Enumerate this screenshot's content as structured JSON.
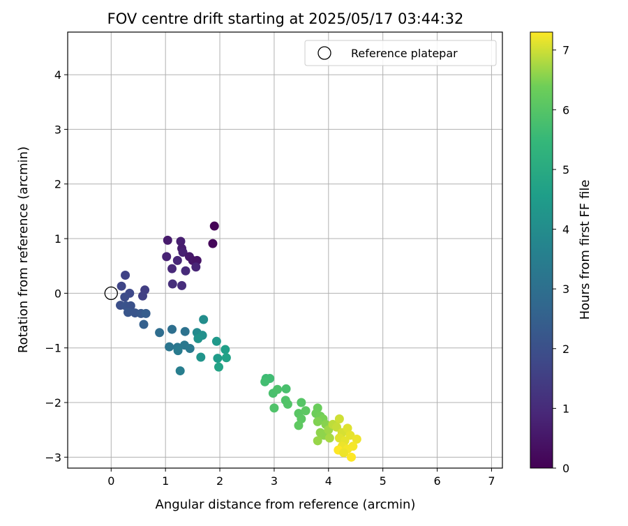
{
  "chart_data": {
    "type": "scatter",
    "title": "FOV centre drift starting at 2025/05/17 03:44:32",
    "xlabel": "Angular distance from reference (arcmin)",
    "ylabel": "Rotation from reference (arcmin)",
    "xlim": [
      -0.8,
      7.2
    ],
    "ylim": [
      -3.2,
      4.78
    ],
    "xticks": [
      0,
      1,
      2,
      3,
      4,
      5,
      6,
      7
    ],
    "yticks": [
      -3,
      -2,
      -1,
      0,
      1,
      2,
      3,
      4
    ],
    "grid": true,
    "legend": {
      "placement": "top-right",
      "entries": [
        "Reference platepar"
      ]
    },
    "reference_point": {
      "x": 0,
      "y": 0
    },
    "colorbar": {
      "label": "Hours from first FF file",
      "range": [
        0,
        7.3
      ],
      "ticks": [
        0,
        1,
        2,
        3,
        4,
        5,
        6,
        7
      ],
      "colormap": "viridis"
    },
    "points": [
      {
        "x": 1.9,
        "y": 1.23,
        "t": 0.05
      },
      {
        "x": 1.87,
        "y": 0.91,
        "t": 0.15
      },
      {
        "x": 1.04,
        "y": 0.97,
        "t": 0.6
      },
      {
        "x": 1.28,
        "y": 0.95,
        "t": 0.7
      },
      {
        "x": 1.3,
        "y": 0.82,
        "t": 0.65
      },
      {
        "x": 1.32,
        "y": 0.75,
        "t": 0.75
      },
      {
        "x": 1.44,
        "y": 0.67,
        "t": 0.55
      },
      {
        "x": 1.5,
        "y": 0.6,
        "t": 0.5
      },
      {
        "x": 1.02,
        "y": 0.67,
        "t": 0.8
      },
      {
        "x": 1.22,
        "y": 0.6,
        "t": 0.9
      },
      {
        "x": 1.58,
        "y": 0.6,
        "t": 0.45
      },
      {
        "x": 1.56,
        "y": 0.48,
        "t": 0.85
      },
      {
        "x": 1.12,
        "y": 0.45,
        "t": 0.95
      },
      {
        "x": 1.37,
        "y": 0.41,
        "t": 1.0
      },
      {
        "x": 1.13,
        "y": 0.17,
        "t": 1.1
      },
      {
        "x": 1.3,
        "y": 0.14,
        "t": 1.05
      },
      {
        "x": 0.26,
        "y": 0.33,
        "t": 1.6
      },
      {
        "x": 0.19,
        "y": 0.13,
        "t": 1.7
      },
      {
        "x": 0.62,
        "y": 0.06,
        "t": 1.5
      },
      {
        "x": 0.34,
        "y": 0.0,
        "t": 1.8
      },
      {
        "x": 0.58,
        "y": -0.05,
        "t": 1.55
      },
      {
        "x": 0.25,
        "y": -0.07,
        "t": 1.9
      },
      {
        "x": 0.17,
        "y": -0.22,
        "t": 2.0
      },
      {
        "x": 0.27,
        "y": -0.23,
        "t": 2.1
      },
      {
        "x": 0.36,
        "y": -0.23,
        "t": 2.05
      },
      {
        "x": 0.31,
        "y": -0.35,
        "t": 2.2
      },
      {
        "x": 0.44,
        "y": -0.36,
        "t": 2.15
      },
      {
        "x": 0.55,
        "y": -0.37,
        "t": 2.25
      },
      {
        "x": 0.64,
        "y": -0.37,
        "t": 2.4
      },
      {
        "x": 0.6,
        "y": -0.57,
        "t": 2.5
      },
      {
        "x": 0.89,
        "y": -0.72,
        "t": 2.9
      },
      {
        "x": 1.12,
        "y": -0.66,
        "t": 3.0
      },
      {
        "x": 1.36,
        "y": -0.7,
        "t": 3.1
      },
      {
        "x": 1.07,
        "y": -0.98,
        "t": 3.2
      },
      {
        "x": 1.22,
        "y": -0.99,
        "t": 3.25
      },
      {
        "x": 1.35,
        "y": -0.95,
        "t": 3.3
      },
      {
        "x": 1.45,
        "y": -1.01,
        "t": 3.35
      },
      {
        "x": 1.23,
        "y": -1.05,
        "t": 3.4
      },
      {
        "x": 1.27,
        "y": -1.42,
        "t": 3.5
      },
      {
        "x": 1.58,
        "y": -0.72,
        "t": 3.9
      },
      {
        "x": 1.7,
        "y": -0.48,
        "t": 4.0
      },
      {
        "x": 1.68,
        "y": -0.77,
        "t": 4.1
      },
      {
        "x": 1.6,
        "y": -0.83,
        "t": 4.2
      },
      {
        "x": 1.65,
        "y": -1.17,
        "t": 4.25
      },
      {
        "x": 1.94,
        "y": -0.88,
        "t": 4.4
      },
      {
        "x": 1.96,
        "y": -1.19,
        "t": 4.5
      },
      {
        "x": 2.1,
        "y": -1.03,
        "t": 4.6
      },
      {
        "x": 2.12,
        "y": -1.18,
        "t": 4.7
      },
      {
        "x": 1.98,
        "y": -1.35,
        "t": 4.75
      },
      {
        "x": 2.85,
        "y": -1.56,
        "t": 5.6
      },
      {
        "x": 2.92,
        "y": -1.56,
        "t": 5.65
      },
      {
        "x": 2.83,
        "y": -1.62,
        "t": 5.7
      },
      {
        "x": 2.98,
        "y": -1.83,
        "t": 5.8
      },
      {
        "x": 3.06,
        "y": -1.76,
        "t": 5.85
      },
      {
        "x": 3.22,
        "y": -1.75,
        "t": 5.8
      },
      {
        "x": 3.21,
        "y": -1.96,
        "t": 5.9
      },
      {
        "x": 3.25,
        "y": -2.03,
        "t": 5.95
      },
      {
        "x": 3.0,
        "y": -2.1,
        "t": 5.9
      },
      {
        "x": 3.5,
        "y": -2.0,
        "t": 6.0
      },
      {
        "x": 3.45,
        "y": -2.2,
        "t": 6.05
      },
      {
        "x": 3.58,
        "y": -2.15,
        "t": 6.1
      },
      {
        "x": 3.5,
        "y": -2.3,
        "t": 6.1
      },
      {
        "x": 3.45,
        "y": -2.42,
        "t": 6.15
      },
      {
        "x": 3.8,
        "y": -2.1,
        "t": 6.3
      },
      {
        "x": 3.77,
        "y": -2.2,
        "t": 6.35
      },
      {
        "x": 3.85,
        "y": -2.25,
        "t": 6.4
      },
      {
        "x": 3.9,
        "y": -2.3,
        "t": 6.45
      },
      {
        "x": 3.8,
        "y": -2.35,
        "t": 6.5
      },
      {
        "x": 3.95,
        "y": -2.4,
        "t": 6.55
      },
      {
        "x": 3.85,
        "y": -2.55,
        "t": 6.6
      },
      {
        "x": 3.92,
        "y": -2.6,
        "t": 6.6
      },
      {
        "x": 3.8,
        "y": -2.7,
        "t": 6.65
      },
      {
        "x": 4.0,
        "y": -2.5,
        "t": 6.7
      },
      {
        "x": 4.02,
        "y": -2.65,
        "t": 6.75
      },
      {
        "x": 4.08,
        "y": -2.4,
        "t": 6.9
      },
      {
        "x": 4.2,
        "y": -2.3,
        "t": 7.0
      },
      {
        "x": 4.15,
        "y": -2.45,
        "t": 6.95
      },
      {
        "x": 4.25,
        "y": -2.55,
        "t": 7.05
      },
      {
        "x": 4.35,
        "y": -2.47,
        "t": 7.1
      },
      {
        "x": 4.2,
        "y": -2.65,
        "t": 7.1
      },
      {
        "x": 4.3,
        "y": -2.7,
        "t": 7.15
      },
      {
        "x": 4.4,
        "y": -2.6,
        "t": 7.15
      },
      {
        "x": 4.52,
        "y": -2.67,
        "t": 7.2
      },
      {
        "x": 4.25,
        "y": -2.8,
        "t": 7.2
      },
      {
        "x": 4.35,
        "y": -2.85,
        "t": 7.25
      },
      {
        "x": 4.45,
        "y": -2.8,
        "t": 7.25
      },
      {
        "x": 4.18,
        "y": -2.87,
        "t": 7.3
      },
      {
        "x": 4.42,
        "y": -3.0,
        "t": 7.3
      },
      {
        "x": 4.28,
        "y": -2.92,
        "t": 7.2
      }
    ]
  }
}
